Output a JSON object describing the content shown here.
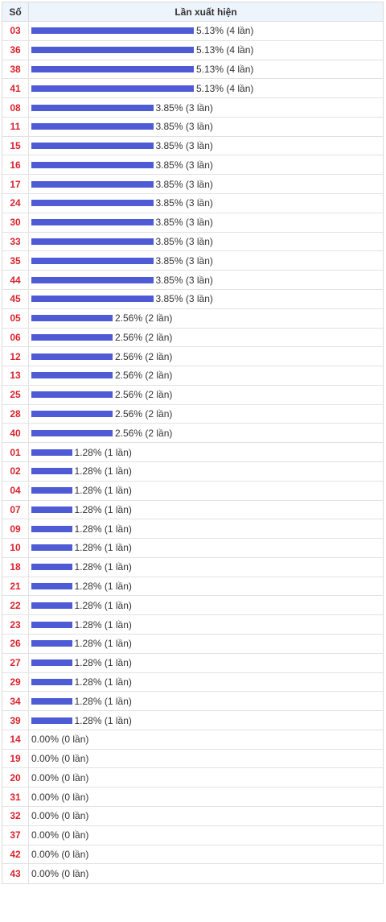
{
  "header": {
    "col_number": "Số",
    "col_freq": "Lần xuất hiện"
  },
  "colors": {
    "bar": "#4f5bd5",
    "number": "#d9232d"
  },
  "rows": [
    {
      "num": "03",
      "label": "5.13% (4 lần)",
      "count": 4
    },
    {
      "num": "36",
      "label": "5.13% (4 lần)",
      "count": 4
    },
    {
      "num": "38",
      "label": "5.13% (4 lần)",
      "count": 4
    },
    {
      "num": "41",
      "label": "5.13% (4 lần)",
      "count": 4
    },
    {
      "num": "08",
      "label": "3.85% (3 lần)",
      "count": 3
    },
    {
      "num": "11",
      "label": "3.85% (3 lần)",
      "count": 3
    },
    {
      "num": "15",
      "label": "3.85% (3 lần)",
      "count": 3
    },
    {
      "num": "16",
      "label": "3.85% (3 lần)",
      "count": 3
    },
    {
      "num": "17",
      "label": "3.85% (3 lần)",
      "count": 3
    },
    {
      "num": "24",
      "label": "3.85% (3 lần)",
      "count": 3
    },
    {
      "num": "30",
      "label": "3.85% (3 lần)",
      "count": 3
    },
    {
      "num": "33",
      "label": "3.85% (3 lần)",
      "count": 3
    },
    {
      "num": "35",
      "label": "3.85% (3 lần)",
      "count": 3
    },
    {
      "num": "44",
      "label": "3.85% (3 lần)",
      "count": 3
    },
    {
      "num": "45",
      "label": "3.85% (3 lần)",
      "count": 3
    },
    {
      "num": "05",
      "label": "2.56% (2 lần)",
      "count": 2
    },
    {
      "num": "06",
      "label": "2.56% (2 lần)",
      "count": 2
    },
    {
      "num": "12",
      "label": "2.56% (2 lần)",
      "count": 2
    },
    {
      "num": "13",
      "label": "2.56% (2 lần)",
      "count": 2
    },
    {
      "num": "25",
      "label": "2.56% (2 lần)",
      "count": 2
    },
    {
      "num": "28",
      "label": "2.56% (2 lần)",
      "count": 2
    },
    {
      "num": "40",
      "label": "2.56% (2 lần)",
      "count": 2
    },
    {
      "num": "01",
      "label": "1.28% (1 lần)",
      "count": 1
    },
    {
      "num": "02",
      "label": "1.28% (1 lần)",
      "count": 1
    },
    {
      "num": "04",
      "label": "1.28% (1 lần)",
      "count": 1
    },
    {
      "num": "07",
      "label": "1.28% (1 lần)",
      "count": 1
    },
    {
      "num": "09",
      "label": "1.28% (1 lần)",
      "count": 1
    },
    {
      "num": "10",
      "label": "1.28% (1 lần)",
      "count": 1
    },
    {
      "num": "18",
      "label": "1.28% (1 lần)",
      "count": 1
    },
    {
      "num": "21",
      "label": "1.28% (1 lần)",
      "count": 1
    },
    {
      "num": "22",
      "label": "1.28% (1 lần)",
      "count": 1
    },
    {
      "num": "23",
      "label": "1.28% (1 lần)",
      "count": 1
    },
    {
      "num": "26",
      "label": "1.28% (1 lần)",
      "count": 1
    },
    {
      "num": "27",
      "label": "1.28% (1 lần)",
      "count": 1
    },
    {
      "num": "29",
      "label": "1.28% (1 lần)",
      "count": 1
    },
    {
      "num": "34",
      "label": "1.28% (1 lần)",
      "count": 1
    },
    {
      "num": "39",
      "label": "1.28% (1 lần)",
      "count": 1
    },
    {
      "num": "14",
      "label": "0.00% (0 lần)",
      "count": 0
    },
    {
      "num": "19",
      "label": "0.00% (0 lần)",
      "count": 0
    },
    {
      "num": "20",
      "label": "0.00% (0 lần)",
      "count": 0
    },
    {
      "num": "31",
      "label": "0.00% (0 lần)",
      "count": 0
    },
    {
      "num": "32",
      "label": "0.00% (0 lần)",
      "count": 0
    },
    {
      "num": "37",
      "label": "0.00% (0 lần)",
      "count": 0
    },
    {
      "num": "42",
      "label": "0.00% (0 lần)",
      "count": 0
    },
    {
      "num": "43",
      "label": "0.00% (0 lần)",
      "count": 0
    }
  ]
}
